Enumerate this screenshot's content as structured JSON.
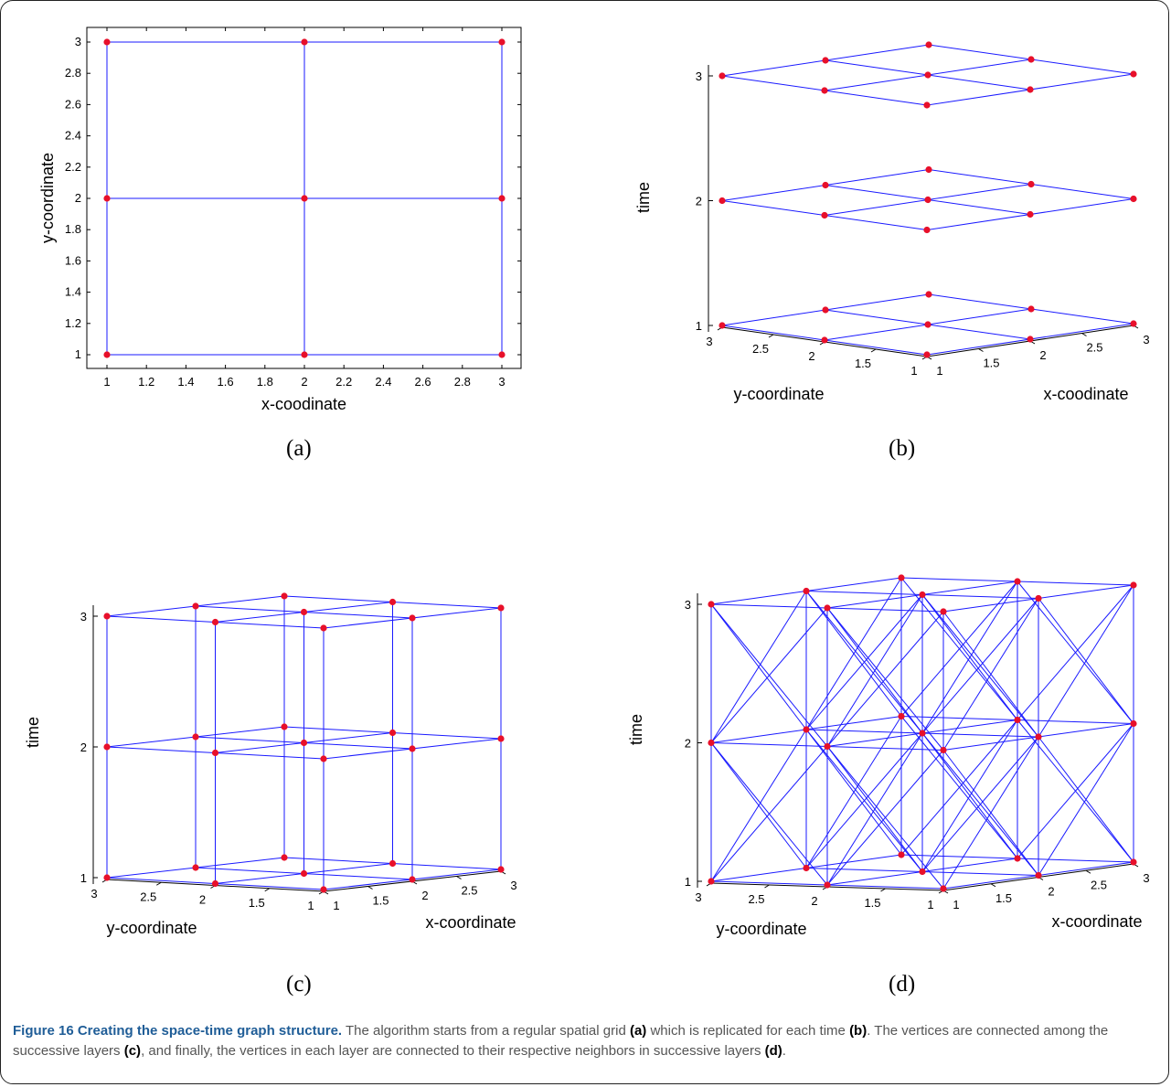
{
  "colors": {
    "edge": "#1a1aff",
    "vertex": "#e8102a",
    "axis": "#000000",
    "caption_title": "#1f5d97",
    "caption_text": "#555555"
  },
  "chart_data": [
    {
      "id": "a",
      "type": "scatter",
      "panel_label": "(a)",
      "xlabel": "x-coodinate",
      "ylabel": "y-coordinate",
      "xlim": [
        1,
        3
      ],
      "ylim": [
        1,
        3
      ],
      "xticks": [
        "1",
        "1.2",
        "1.4",
        "1.6",
        "1.8",
        "2",
        "2.2",
        "2.4",
        "2.6",
        "2.8",
        "3"
      ],
      "yticks": [
        "1",
        "1.2",
        "1.4",
        "1.6",
        "1.8",
        "2",
        "2.2",
        "2.4",
        "2.6",
        "2.8",
        "3"
      ],
      "points": [
        [
          1,
          1
        ],
        [
          2,
          1
        ],
        [
          3,
          1
        ],
        [
          1,
          2
        ],
        [
          2,
          2
        ],
        [
          3,
          2
        ],
        [
          1,
          3
        ],
        [
          2,
          3
        ],
        [
          3,
          3
        ]
      ],
      "edges": "4-neighbour grid"
    },
    {
      "id": "b",
      "type": "scatter3d",
      "panel_label": "(b)",
      "xlabel": "x-coodinate",
      "ylabel": "y-coordinate",
      "zlabel": "time",
      "xlim": [
        1,
        3
      ],
      "ylim": [
        1,
        3
      ],
      "zlim": [
        1,
        3
      ],
      "xticks": [
        "1",
        "1.5",
        "2",
        "2.5",
        "3"
      ],
      "yticks": [
        "1",
        "1.5",
        "2",
        "2.5",
        "3"
      ],
      "zticks": [
        "1",
        "2",
        "3"
      ],
      "layers": [
        1,
        2,
        3
      ],
      "edges": "spatial grid within each time layer"
    },
    {
      "id": "c",
      "type": "scatter3d",
      "panel_label": "(c)",
      "xlabel": "x-coordinate",
      "ylabel": "y-coordinate",
      "zlabel": "time",
      "xlim": [
        1,
        3
      ],
      "ylim": [
        1,
        3
      ],
      "zlim": [
        1,
        3
      ],
      "xticks": [
        "1",
        "1.5",
        "2",
        "2.5",
        "3"
      ],
      "yticks": [
        "1",
        "1.5",
        "2",
        "2.5",
        "3"
      ],
      "zticks": [
        "1",
        "2",
        "3"
      ],
      "layers": [
        1,
        2,
        3
      ],
      "edges": "spatial grid + same vertex across successive layers"
    },
    {
      "id": "d",
      "type": "scatter3d",
      "panel_label": "(d)",
      "xlabel": "x-coordinate",
      "ylabel": "y-coordinate",
      "zlabel": "time",
      "xlim": [
        1,
        3
      ],
      "ylim": [
        1,
        3
      ],
      "zlim": [
        1,
        3
      ],
      "xticks": [
        "1",
        "1.5",
        "2",
        "2.5",
        "3"
      ],
      "yticks": [
        "1",
        "1.5",
        "2",
        "2.5",
        "3"
      ],
      "zticks": [
        "1",
        "2",
        "3"
      ],
      "layers": [
        1,
        2,
        3
      ],
      "edges": "spatial grid + vertical + neighbours in successive layers"
    }
  ],
  "caption": {
    "title": "Figure 16 Creating the space-time graph structure.",
    "t1": " The algorithm starts from a regular spatial grid ",
    "r1": "(a)",
    "t2": " which is replicated for each time ",
    "r2": "(b)",
    "t3": ". The vertices are connected among the successive layers ",
    "r3": "(c)",
    "t4": ", and finally, the vertices in each layer are connected to their respective neighbors in successive layers ",
    "r4": "(d)",
    "t5": "."
  }
}
